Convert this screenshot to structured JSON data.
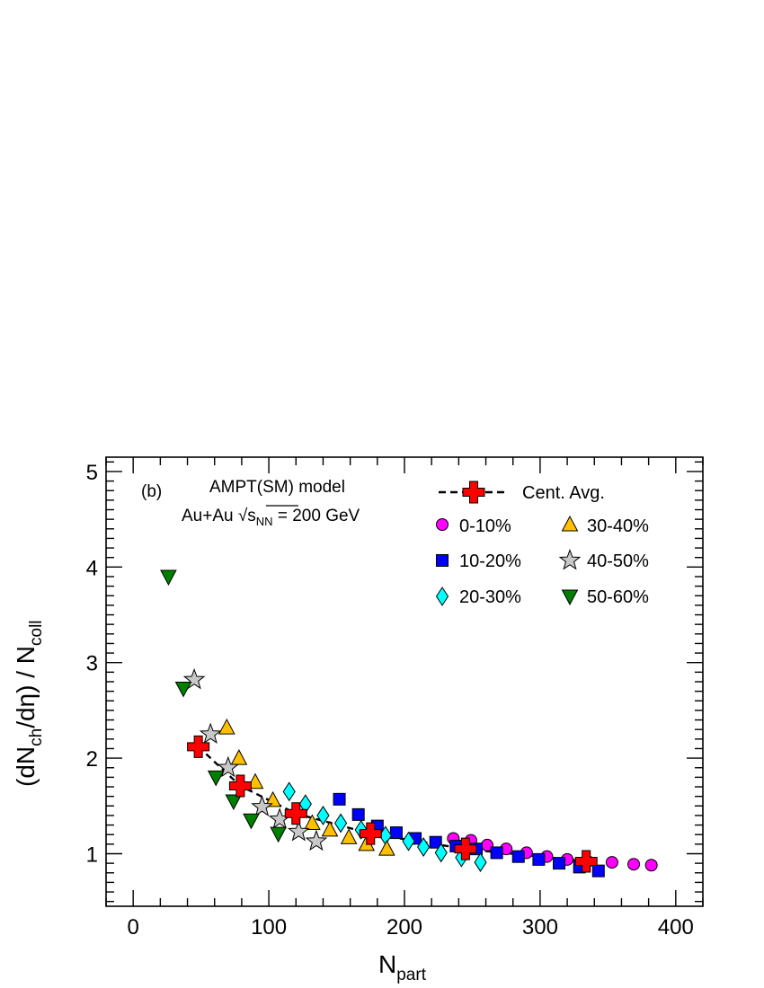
{
  "chart_data": {
    "type": "scatter",
    "panel_label": "(b)",
    "annotation": {
      "line1": "AMPT(SM) model",
      "line2_prefix": "Au+Au ",
      "sqrt_symbol": "√",
      "line2_s": "s",
      "line2_sub": "NN",
      "line2_suffix": " = 200 GeV"
    },
    "xlabel": {
      "main": "N",
      "sub": "part"
    },
    "ylabel": {
      "pre": "(dN",
      "sub1": "ch",
      "mid": "/dη) / N",
      "sub2": "coll"
    },
    "xlim": [
      -20,
      420
    ],
    "ylim": [
      0.45,
      5.15
    ],
    "xticks": [
      0,
      100,
      200,
      300,
      400
    ],
    "yticks": [
      1,
      2,
      3,
      4,
      5
    ],
    "series": [
      {
        "name": "Cent. Avg.",
        "marker": "cross",
        "color": "#ff0000",
        "line": "dashed",
        "x": [
          48,
          79,
          120,
          175,
          245,
          334
        ],
        "y": [
          2.12,
          1.71,
          1.42,
          1.21,
          1.05,
          0.92
        ]
      },
      {
        "name": "0-10%",
        "marker": "circle",
        "color": "#ff00ff",
        "x": [
          236,
          249,
          261,
          275,
          290,
          305,
          320,
          335,
          353,
          369,
          382
        ],
        "y": [
          1.16,
          1.14,
          1.09,
          1.05,
          1.01,
          0.97,
          0.94,
          0.92,
          0.91,
          0.89,
          0.88
        ]
      },
      {
        "name": "10-20%",
        "marker": "square",
        "color": "#0000ff",
        "x": [
          152,
          166,
          180,
          194,
          208,
          223,
          238,
          253,
          268,
          284,
          299,
          314,
          329,
          343
        ],
        "y": [
          1.57,
          1.41,
          1.29,
          1.22,
          1.16,
          1.12,
          1.08,
          1.05,
          1.01,
          0.97,
          0.94,
          0.9,
          0.86,
          0.82
        ]
      },
      {
        "name": "20-30%",
        "marker": "diamond",
        "color": "#00ffff",
        "x": [
          115,
          127,
          140,
          153,
          168,
          186,
          203,
          214,
          227,
          242,
          256
        ],
        "y": [
          1.65,
          1.52,
          1.4,
          1.32,
          1.25,
          1.19,
          1.13,
          1.07,
          1.01,
          0.96,
          0.91
        ]
      },
      {
        "name": "30-40%",
        "marker": "triangle-up",
        "color": "#ffc000",
        "x": [
          69,
          78,
          90,
          103,
          132,
          145,
          159,
          172,
          187
        ],
        "y": [
          2.32,
          2.0,
          1.75,
          1.56,
          1.32,
          1.25,
          1.17,
          1.1,
          1.05
        ]
      },
      {
        "name": "40-50%",
        "marker": "star",
        "color": "#c8c8c8",
        "x": [
          45,
          57,
          70,
          95,
          108,
          122,
          135
        ],
        "y": [
          2.82,
          2.25,
          1.9,
          1.49,
          1.36,
          1.23,
          1.13
        ]
      },
      {
        "name": "50-60%",
        "marker": "triangle-down",
        "color": "#008000",
        "x": [
          26,
          37,
          61,
          74,
          87,
          107
        ],
        "y": [
          3.9,
          2.73,
          1.8,
          1.55,
          1.35,
          1.21
        ]
      }
    ]
  }
}
